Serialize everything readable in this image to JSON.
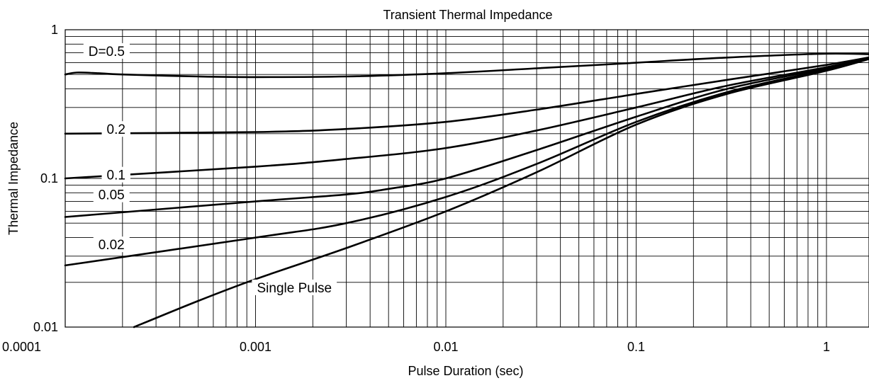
{
  "chart_data": {
    "type": "line",
    "title": "Transient Thermal Impedance",
    "xlabel": "Pulse Duration (sec)",
    "ylabel": "Thermal Impedance",
    "xscale": "log",
    "yscale": "log",
    "xlim": [
      0.0001,
      2
    ],
    "ylim": [
      0.01,
      1
    ],
    "grid": true,
    "legend": "inline labels on curves",
    "x_tick_labels": [
      "0.0001",
      "0.001",
      "0.01",
      "0.1",
      "1"
    ],
    "y_tick_labels": [
      "0.01",
      "0.1",
      "1"
    ],
    "series": [
      {
        "name": "D=0.5",
        "x": [
          0.0001,
          0.000115,
          0.00015,
          0.0002,
          0.0005,
          0.001,
          0.003,
          0.01,
          0.03,
          0.1,
          0.3,
          1,
          2
        ],
        "y": [
          0.5,
          0.515,
          0.51,
          0.5,
          0.485,
          0.48,
          0.485,
          0.51,
          0.55,
          0.6,
          0.65,
          0.69,
          0.68
        ]
      },
      {
        "name": "0.2",
        "x": [
          0.0001,
          0.001,
          0.003,
          0.01,
          0.03,
          0.1,
          0.3,
          1,
          2
        ],
        "y": [
          0.2,
          0.205,
          0.215,
          0.24,
          0.29,
          0.37,
          0.46,
          0.58,
          0.68
        ]
      },
      {
        "name": "0.1",
        "x": [
          0.0001,
          0.001,
          0.003,
          0.01,
          0.03,
          0.1,
          0.3,
          1,
          2
        ],
        "y": [
          0.1,
          0.12,
          0.135,
          0.16,
          0.21,
          0.3,
          0.42,
          0.56,
          0.68
        ]
      },
      {
        "name": "0.05",
        "x": [
          0.0001,
          0.001,
          0.003,
          0.005,
          0.01,
          0.03,
          0.1,
          0.3,
          1,
          2
        ],
        "y": [
          0.055,
          0.07,
          0.078,
          0.085,
          0.1,
          0.155,
          0.26,
          0.4,
          0.55,
          0.68
        ]
      },
      {
        "name": "0.02",
        "x": [
          0.0001,
          0.001,
          0.003,
          0.01,
          0.03,
          0.1,
          0.3,
          1,
          2
        ],
        "y": [
          0.026,
          0.04,
          0.05,
          0.075,
          0.125,
          0.24,
          0.38,
          0.54,
          0.68
        ]
      },
      {
        "name": "Single Pulse",
        "x": [
          0.00023,
          0.0005,
          0.001,
          0.003,
          0.01,
          0.03,
          0.1,
          0.3,
          1,
          2
        ],
        "y": [
          0.01,
          0.015,
          0.021,
          0.034,
          0.06,
          0.11,
          0.23,
          0.37,
          0.53,
          0.68
        ]
      }
    ]
  }
}
